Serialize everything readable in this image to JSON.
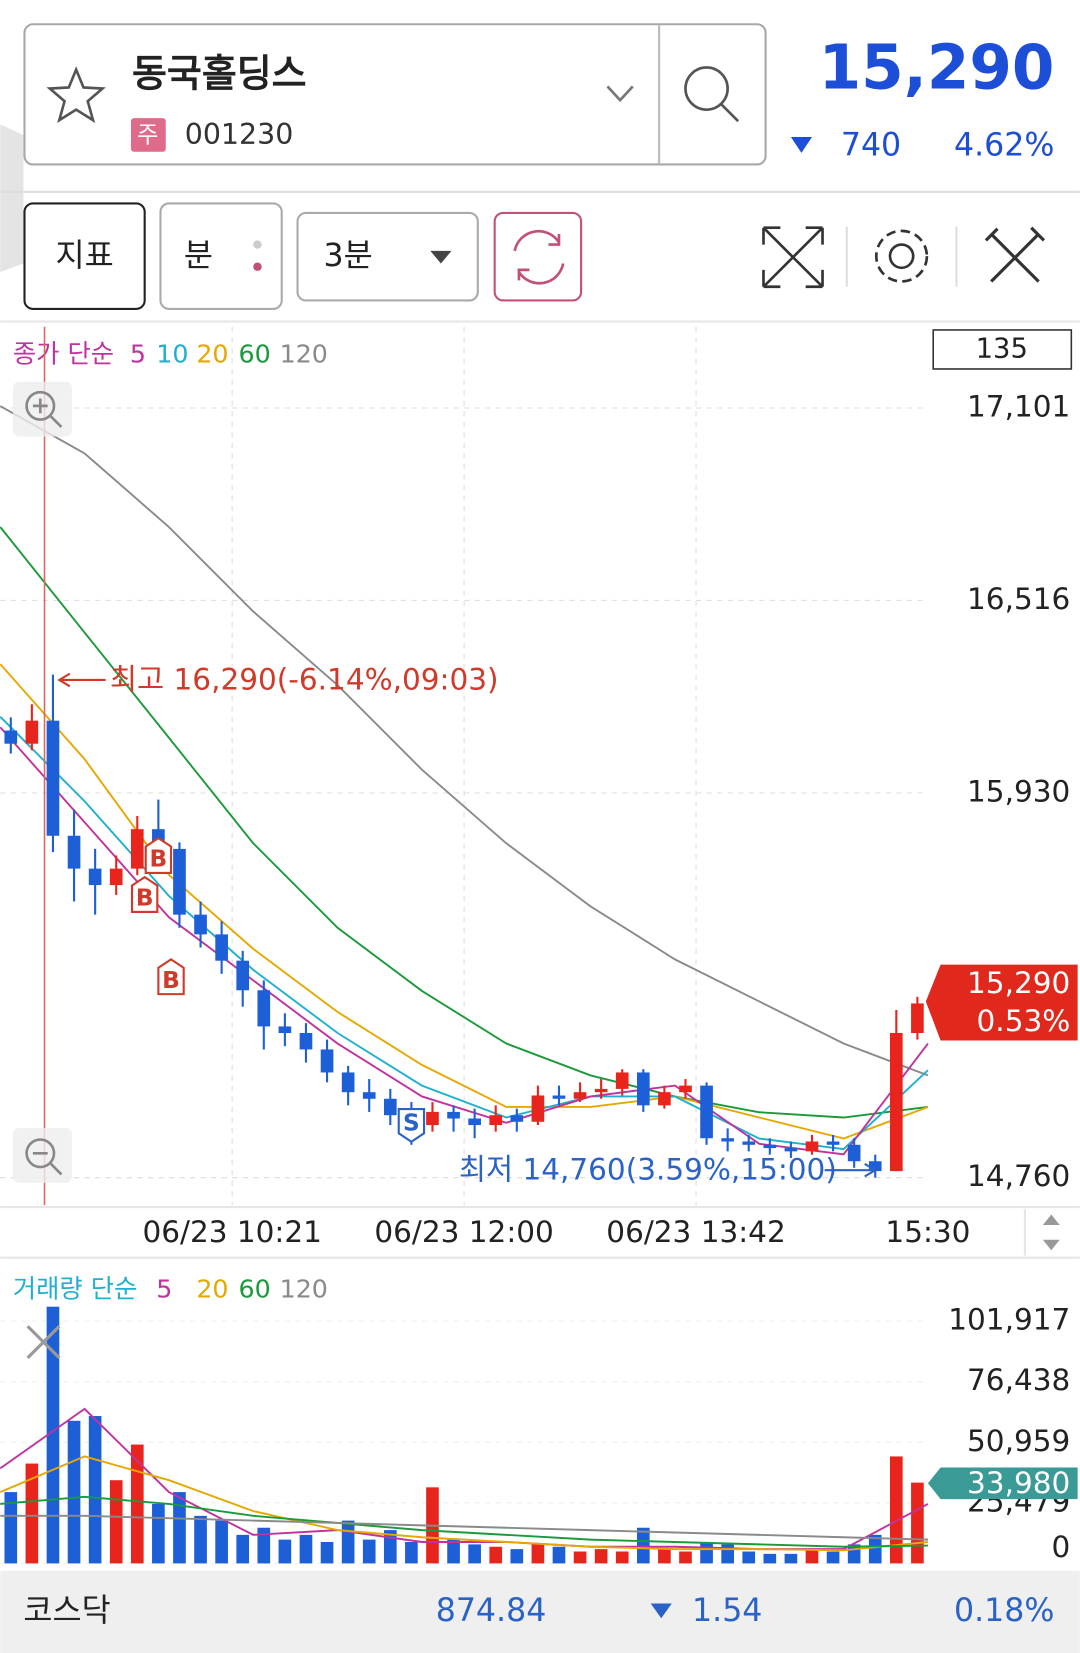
{
  "header": {
    "name": "동국홀딩스",
    "badge": "주",
    "code": "001230",
    "price": "15,290",
    "change": "740",
    "change_pct": "4.62%"
  },
  "toolbar": {
    "indicator": "지표",
    "unit": "분",
    "interval": "3분"
  },
  "price_chart": {
    "legend_label": "종가 단순",
    "count": "135",
    "ylim": [
      14677,
      17348
    ],
    "yticks": [
      {
        "value": 14760,
        "label": "14,760"
      },
      {
        "value": 15930,
        "label": "15,930"
      },
      {
        "value": 16516,
        "label": "16,516"
      },
      {
        "value": 17101,
        "label": "17,101"
      }
    ],
    "x_labels": [
      "06/23 10:21",
      "06/23 12:00",
      "06/23 13:42",
      "15:30"
    ],
    "candles": {
      "open": [
        16120,
        16080,
        16150,
        15800,
        15700,
        15650,
        15700,
        15820,
        15760,
        15560,
        15500,
        15420,
        15330,
        15220,
        15200,
        15150,
        15080,
        15020,
        15000,
        14950,
        14920,
        14960,
        14940,
        14920,
        14950,
        14930,
        15010,
        15000,
        15020,
        15030,
        15080,
        14980,
        15020,
        15040,
        14880,
        14870,
        14860,
        14850,
        14840,
        14870,
        14860,
        14810,
        14780,
        15200
      ],
      "high": [
        16160,
        16200,
        16290,
        15880,
        15760,
        15740,
        15860,
        15910,
        15780,
        15600,
        15540,
        15450,
        15360,
        15260,
        15230,
        15180,
        15100,
        15060,
        15030,
        14990,
        14990,
        14980,
        14970,
        14980,
        14970,
        15040,
        15040,
        15050,
        15060,
        15090,
        15090,
        15040,
        15060,
        15050,
        14910,
        14890,
        14880,
        14870,
        14890,
        14890,
        14880,
        14830,
        15270,
        15310
      ],
      "low": [
        16050,
        16060,
        15750,
        15600,
        15560,
        15620,
        15680,
        15720,
        15520,
        15460,
        15380,
        15280,
        15150,
        15160,
        15110,
        15050,
        14980,
        14960,
        14920,
        14860,
        14900,
        14900,
        14880,
        14900,
        14900,
        14920,
        14980,
        14990,
        15000,
        15010,
        14960,
        14970,
        15000,
        14860,
        14840,
        14840,
        14830,
        14820,
        14830,
        14840,
        14790,
        14760,
        14780,
        15180
      ],
      "close": [
        16080,
        16150,
        15800,
        15700,
        15650,
        15700,
        15820,
        15760,
        15560,
        15500,
        15420,
        15330,
        15220,
        15200,
        15150,
        15080,
        15020,
        15000,
        14950,
        14920,
        14960,
        14940,
        14920,
        14950,
        14930,
        15010,
        15000,
        15020,
        15030,
        15080,
        14980,
        15020,
        15040,
        14880,
        14870,
        14860,
        14850,
        14840,
        14870,
        14860,
        14810,
        14780,
        15200,
        15290
      ]
    },
    "ma": [
      {
        "name": "5",
        "color": "#c0339f",
        "values": [
          16130,
          15841,
          15552,
          15360,
          15168,
          15007,
          14927,
          15007,
          15040,
          14863,
          14831,
          15168
        ]
      },
      {
        "name": "10",
        "color": "#1fb0d0",
        "values": [
          16162,
          15905,
          15617,
          15392,
          15200,
          15040,
          14943,
          15007,
          15007,
          14879,
          14847,
          15087
        ]
      },
      {
        "name": "20",
        "color": "#e6a800",
        "values": [
          16322,
          16033,
          15681,
          15456,
          15264,
          15103,
          14975,
          14975,
          15007,
          14943,
          14879,
          14975
        ]
      },
      {
        "name": "60",
        "color": "#1a9a3a",
        "values": [
          16739,
          16418,
          16098,
          15777,
          15520,
          15328,
          15168,
          15071,
          15007,
          14959,
          14943,
          14975
        ]
      },
      {
        "name": "120",
        "color": "#8a8a8a",
        "values": [
          17107,
          16963,
          16739,
          16482,
          16258,
          16001,
          15777,
          15585,
          15424,
          15296,
          15168,
          15071
        ]
      }
    ],
    "high_label": "최고 16,290(-6.14%,09:03)",
    "low_label": "최저 14,760(3.59%,15:00)",
    "signals": [
      "B",
      "B",
      "B",
      "S"
    ],
    "current_price": "15,290",
    "current_pct": "0.53%"
  },
  "volume_chart": {
    "legend_label": "거래량 단순",
    "ylim": [
      0,
      110000
    ],
    "yticks": [
      0,
      {
        "value": 25479,
        "label": "25,479"
      },
      {
        "value": 50959,
        "label": "50,959"
      },
      {
        "value": 76438,
        "label": "76,438"
      },
      {
        "value": 101917,
        "label": "101,917"
      }
    ],
    "values": [
      30000,
      42000,
      108000,
      60000,
      62000,
      35000,
      50000,
      25000,
      30000,
      20000,
      18000,
      12000,
      15000,
      10000,
      12000,
      9000,
      18000,
      10000,
      14000,
      9000,
      32000,
      10000,
      8000,
      7000,
      6000,
      8000,
      7000,
      5000,
      6000,
      5000,
      15000,
      6000,
      5000,
      9000,
      8000,
      5000,
      4000,
      4000,
      6000,
      5000,
      8000,
      12000,
      45000,
      33980
    ],
    "ma": [
      {
        "name": "5",
        "color": "#c0339f",
        "values": [
          40000,
          65000,
          30000,
          12000,
          14000,
          9000,
          9000,
          7000,
          7000,
          6000,
          6000,
          25000
        ]
      },
      {
        "name": "20",
        "color": "#e6a800",
        "values": [
          30000,
          45000,
          35000,
          22000,
          14000,
          11000,
          9000,
          7000,
          6000,
          6000,
          5500,
          9000
        ]
      },
      {
        "name": "60",
        "color": "#1a9a3a",
        "values": [
          25000,
          28000,
          25000,
          20000,
          17000,
          14000,
          12000,
          10000,
          9000,
          8000,
          7000,
          7500
        ]
      },
      {
        "name": "120",
        "color": "#8a8a8a",
        "values": [
          20000,
          20000,
          19000,
          18000,
          17000,
          16000,
          15000,
          14000,
          13000,
          12000,
          11000,
          10000
        ]
      }
    ],
    "current": "33,980"
  },
  "footer": {
    "index_name": "코스닥",
    "index_value": "874.84",
    "index_change": "1.54",
    "index_pct": "0.18%"
  }
}
